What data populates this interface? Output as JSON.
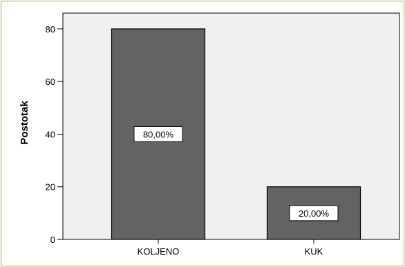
{
  "chart_data": {
    "type": "bar",
    "categories": [
      "KOLJENO",
      "KUK"
    ],
    "values": [
      80,
      20
    ],
    "data_labels": [
      "80,00%",
      "20,00%"
    ],
    "yticks": [
      0,
      20,
      40,
      60,
      80
    ],
    "ylabel": "Postotak",
    "xlabel": "",
    "ylim": [
      0,
      86
    ],
    "grid": false,
    "legend": "none",
    "colors": {
      "plot_background": "#f0f0f0",
      "bar_fill": "#636363",
      "bar_stroke": "#000000",
      "frame_border": "#8bb05a",
      "label_box": "#ffffff"
    }
  }
}
